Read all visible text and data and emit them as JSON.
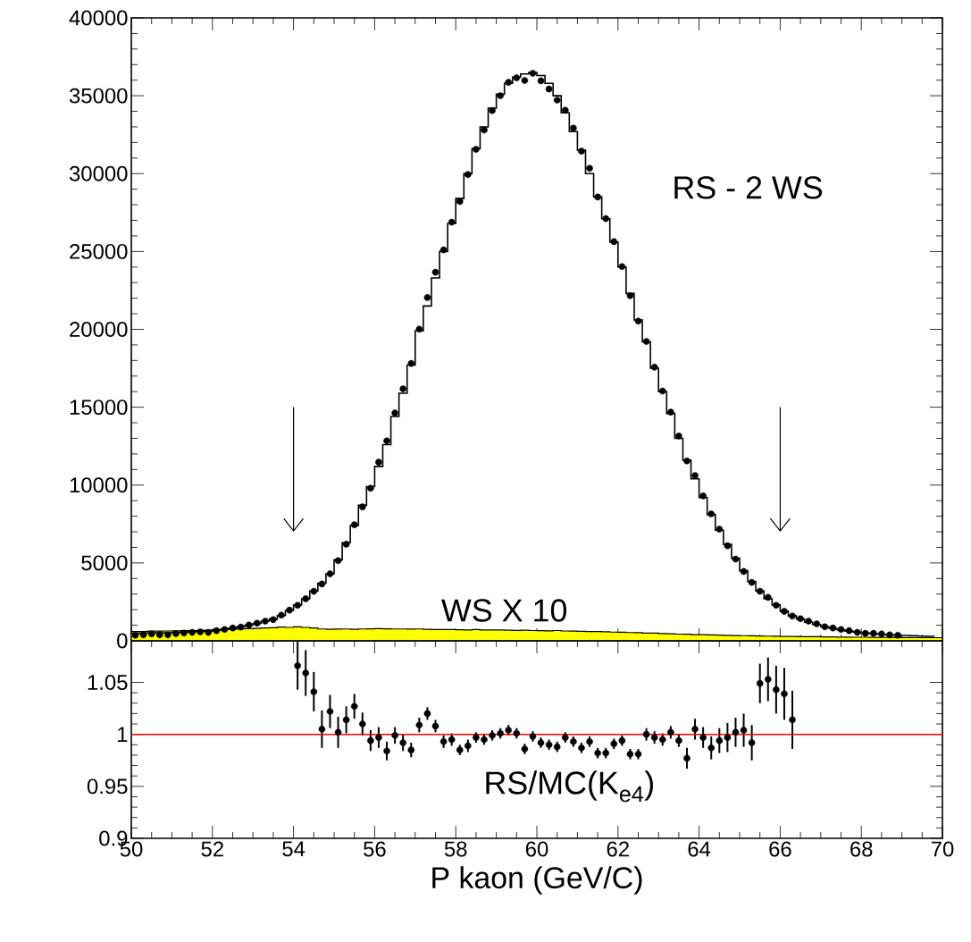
{
  "chart_data": [
    {
      "type": "histogram",
      "xlim": [
        50,
        70
      ],
      "ylim": [
        0,
        40000
      ],
      "xticks": [
        50,
        52,
        54,
        56,
        58,
        60,
        62,
        64,
        66,
        68,
        70
      ],
      "yticks": [
        0,
        5000,
        10000,
        15000,
        20000,
        25000,
        30000,
        35000,
        40000
      ],
      "tick_labels": "y",
      "bins": [
        50,
        50.2,
        50.4,
        50.6,
        50.8,
        51,
        51.2,
        51.4,
        51.6,
        51.8,
        52,
        52.2,
        52.4,
        52.6,
        52.8,
        53,
        53.2,
        53.4,
        53.6,
        53.8,
        54,
        54.2,
        54.4,
        54.6,
        54.8,
        55,
        55.2,
        55.4,
        55.6,
        55.8,
        56,
        56.2,
        56.4,
        56.6,
        56.8,
        57,
        57.2,
        57.4,
        57.6,
        57.8,
        58,
        58.2,
        58.4,
        58.6,
        58.8,
        59,
        59.2,
        59.4,
        59.6,
        59.8,
        60,
        60.2,
        60.4,
        60.6,
        60.8,
        61,
        61.2,
        61.4,
        61.6,
        61.8,
        62,
        62.2,
        62.4,
        62.6,
        62.8,
        63,
        63.2,
        63.4,
        63.6,
        63.8,
        64,
        64.2,
        64.4,
        64.6,
        64.8,
        65,
        65.2,
        65.4,
        65.6,
        65.8,
        66,
        66.2,
        66.4,
        66.6,
        66.8,
        67,
        67.2,
        67.4,
        67.6,
        67.8,
        68,
        68.2,
        68.4,
        68.6,
        68.8,
        69,
        69.2,
        69.4,
        69.6,
        69.8,
        70
      ],
      "series": [
        {
          "type": "histogram",
          "color": "#ffff00",
          "values": [
            600,
            600,
            620,
            620,
            630,
            640,
            650,
            660,
            670,
            680,
            700,
            720,
            740,
            760,
            780,
            800,
            820,
            840,
            880,
            860,
            900,
            860,
            820,
            760,
            740,
            750,
            760,
            740,
            760,
            770,
            780,
            770,
            760,
            760,
            750,
            760,
            740,
            730,
            720,
            720,
            710,
            700,
            720,
            700,
            690,
            700,
            680,
            670,
            680,
            660,
            650,
            640,
            660,
            630,
            620,
            610,
            600,
            590,
            580,
            560,
            550,
            530,
            520,
            500,
            490,
            470,
            450,
            430,
            420,
            400,
            390,
            380,
            370,
            350,
            340,
            330,
            320,
            310,
            300,
            290,
            280,
            280,
            270,
            260,
            260,
            250,
            250,
            240,
            240,
            230,
            230,
            220,
            220,
            220,
            210,
            210,
            200,
            200,
            200,
            200
          ]
        },
        {
          "type": "step",
          "color": "#000000",
          "x": [
            50,
            50.2,
            50.4,
            50.6,
            50.8,
            51,
            51.2,
            51.4,
            51.6,
            51.8,
            52,
            52.2,
            52.4,
            52.6,
            52.8,
            53,
            53.2,
            53.4,
            53.6,
            53.8,
            54,
            54.2,
            54.4,
            54.6,
            54.8,
            55,
            55.2,
            55.4,
            55.6,
            55.8,
            56,
            56.2,
            56.4,
            56.6,
            56.8,
            57,
            57.2,
            57.4,
            57.6,
            57.8,
            58,
            58.2,
            58.4,
            58.6,
            58.8,
            59,
            59.2,
            59.4,
            59.6,
            59.8,
            60,
            60.2,
            60.4,
            60.6,
            60.8,
            61,
            61.2,
            61.4,
            61.6,
            61.8,
            62,
            62.2,
            62.4,
            62.6,
            62.8,
            63,
            63.2,
            63.4,
            63.6,
            63.8,
            64,
            64.2,
            64.4,
            64.6,
            64.8,
            65,
            65.2,
            65.4,
            65.6,
            65.8,
            66,
            66.2,
            66.4,
            66.6,
            66.8,
            67,
            67.2,
            67.4,
            67.6,
            67.8,
            68,
            68.2,
            68.4,
            68.6,
            68.8,
            69,
            69.2,
            69.4,
            69.6,
            69.8
          ],
          "values": [
            480,
            500,
            500,
            520,
            520,
            540,
            560,
            580,
            600,
            620,
            680,
            740,
            820,
            900,
            1000,
            1120,
            1260,
            1400,
            1620,
            1950,
            2300,
            2700,
            3200,
            3700,
            4300,
            5200,
            6300,
            7400,
            8700,
            9900,
            11200,
            12600,
            14400,
            15900,
            17700,
            19900,
            21500,
            23300,
            25000,
            26800,
            28400,
            30000,
            31600,
            33000,
            34200,
            35100,
            35800,
            36200,
            36400,
            36500,
            36300,
            35800,
            35000,
            33900,
            32700,
            31500,
            30000,
            28500,
            27100,
            25600,
            24000,
            22300,
            20600,
            19200,
            17500,
            16000,
            14600,
            13000,
            11600,
            10400,
            9200,
            8100,
            7100,
            6200,
            5300,
            4500,
            3800,
            3200,
            2700,
            2300,
            1900,
            1600,
            1400,
            1200,
            1050,
            900,
            800,
            700,
            620,
            560,
            500,
            460,
            420,
            390,
            360,
            340,
            320,
            300,
            290,
            280
          ]
        },
        {
          "type": "scatter",
          "color": "#000000",
          "marker": "circle",
          "x": [
            50.1,
            50.3,
            50.5,
            50.7,
            50.9,
            51.1,
            51.3,
            51.5,
            51.7,
            51.9,
            52.1,
            52.3,
            52.5,
            52.7,
            52.9,
            53.1,
            53.3,
            53.5,
            53.7,
            53.9,
            54.1,
            54.3,
            54.5,
            54.7,
            54.9,
            55.1,
            55.3,
            55.5,
            55.7,
            55.9,
            56.1,
            56.3,
            56.5,
            56.7,
            56.9,
            57.1,
            57.3,
            57.5,
            57.7,
            57.9,
            58.1,
            58.3,
            58.5,
            58.7,
            58.9,
            59.1,
            59.3,
            59.5,
            59.7,
            59.9,
            60.1,
            60.3,
            60.5,
            60.7,
            60.9,
            61.1,
            61.3,
            61.5,
            61.7,
            61.9,
            62.1,
            62.3,
            62.5,
            62.7,
            62.9,
            63.1,
            63.3,
            63.5,
            63.7,
            63.9,
            64.1,
            64.3,
            64.5,
            64.7,
            64.9,
            65.1,
            65.3,
            65.5,
            65.7,
            65.9,
            66.1,
            66.3,
            66.5,
            66.7,
            66.9,
            67.1,
            67.3,
            67.5,
            67.7,
            67.9,
            68.1,
            68.3,
            68.5,
            68.7,
            68.9
          ],
          "values": [
            360,
            380,
            440,
            380,
            380,
            460,
            500,
            540,
            570,
            540,
            650,
            730,
            820,
            880,
            1010,
            1130,
            1260,
            1360,
            1650,
            1970,
            2280,
            2700,
            3180,
            3650,
            4300,
            5150,
            6200,
            7450,
            8600,
            9800,
            11470,
            12840,
            14630,
            16180,
            17810,
            20010,
            22040,
            23670,
            25100,
            26880,
            28210,
            29940,
            31560,
            32800,
            34050,
            35000,
            35860,
            36150,
            35980,
            36440,
            35960,
            35430,
            34720,
            34070,
            32920,
            31440,
            30340,
            28500,
            27110,
            25630,
            24030,
            22160,
            20530,
            19220,
            17570,
            16040,
            14680,
            13150,
            11550,
            10610,
            9300,
            8150,
            7170,
            6100,
            5250,
            4450,
            3750,
            3180,
            2790,
            2280,
            1890,
            1590,
            1420,
            1260,
            1090,
            900,
            820,
            730,
            650,
            540,
            480,
            480,
            440,
            380,
            360
          ]
        }
      ],
      "ref_lines": [
        {
          "axis": "x",
          "value": 54
        },
        {
          "axis": "x",
          "value": 66
        }
      ],
      "annotations": [
        "RS - 2 WS",
        "WS X 10"
      ]
    },
    {
      "type": "scatter",
      "xlim": [
        50,
        70
      ],
      "ylim": [
        0.9,
        1.09
      ],
      "xticks": [
        50,
        52,
        54,
        56,
        58,
        60,
        62,
        64,
        66,
        68,
        70
      ],
      "yticks": [
        0.9,
        0.95,
        1,
        1.05
      ],
      "xlabel": "P kaon (GeV/C)",
      "color": "#000000",
      "marker": "circle",
      "x": [
        54.1,
        54.3,
        54.5,
        54.7,
        54.9,
        55.1,
        55.3,
        55.5,
        55.7,
        55.9,
        56.1,
        56.3,
        56.5,
        56.7,
        56.9,
        57.1,
        57.3,
        57.5,
        57.7,
        57.9,
        58.1,
        58.3,
        58.5,
        58.7,
        58.9,
        59.1,
        59.3,
        59.5,
        59.7,
        59.9,
        60.1,
        60.3,
        60.5,
        60.7,
        60.9,
        61.1,
        61.3,
        61.5,
        61.7,
        61.9,
        62.1,
        62.3,
        62.5,
        62.7,
        62.9,
        63.1,
        63.3,
        63.5,
        63.7,
        63.9,
        64.1,
        64.3,
        64.5,
        64.7,
        64.9,
        65.1,
        65.3,
        65.5,
        65.7,
        65.9,
        66.1,
        66.3
      ],
      "values": [
        1.066,
        1.059,
        1.041,
        1.005,
        1.022,
        1.002,
        1.014,
        1.027,
        1.01,
        0.994,
        0.997,
        0.984,
        0.999,
        0.992,
        0.985,
        1.009,
        1.02,
        1.008,
        0.993,
        0.995,
        0.985,
        0.989,
        0.997,
        0.995,
        0.999,
        1.001,
        1.004,
        1.001,
        0.986,
        0.998,
        0.992,
        0.99,
        0.988,
        0.997,
        0.993,
        0.987,
        0.993,
        0.982,
        0.982,
        0.991,
        0.994,
        0.981,
        0.981,
        1.0,
        0.997,
        0.995,
        1.002,
        0.994,
        0.977,
        1.005,
        0.997,
        0.987,
        0.994,
        0.997,
        1.002,
        1.004,
        0.992,
        1.049,
        1.053,
        1.043,
        1.039,
        1.014
      ],
      "errors": [
        0.023,
        0.022,
        0.019,
        0.018,
        0.016,
        0.015,
        0.013,
        0.012,
        0.011,
        0.01,
        0.01,
        0.009,
        0.008,
        0.008,
        0.007,
        0.007,
        0.006,
        0.006,
        0.006,
        0.006,
        0.005,
        0.006,
        0.005,
        0.005,
        0.005,
        0.005,
        0.005,
        0.005,
        0.005,
        0.005,
        0.005,
        0.005,
        0.005,
        0.005,
        0.005,
        0.005,
        0.005,
        0.005,
        0.005,
        0.005,
        0.005,
        0.005,
        0.005,
        0.006,
        0.006,
        0.006,
        0.006,
        0.006,
        0.01,
        0.01,
        0.01,
        0.011,
        0.012,
        0.014,
        0.014,
        0.016,
        0.017,
        0.019,
        0.021,
        0.023,
        0.025,
        0.028
      ],
      "ref_lines": [
        {
          "axis": "y",
          "value": 1,
          "color": "#ff0000"
        }
      ],
      "annotations": [
        "RS/MC(K$_{e4}$)"
      ]
    }
  ]
}
